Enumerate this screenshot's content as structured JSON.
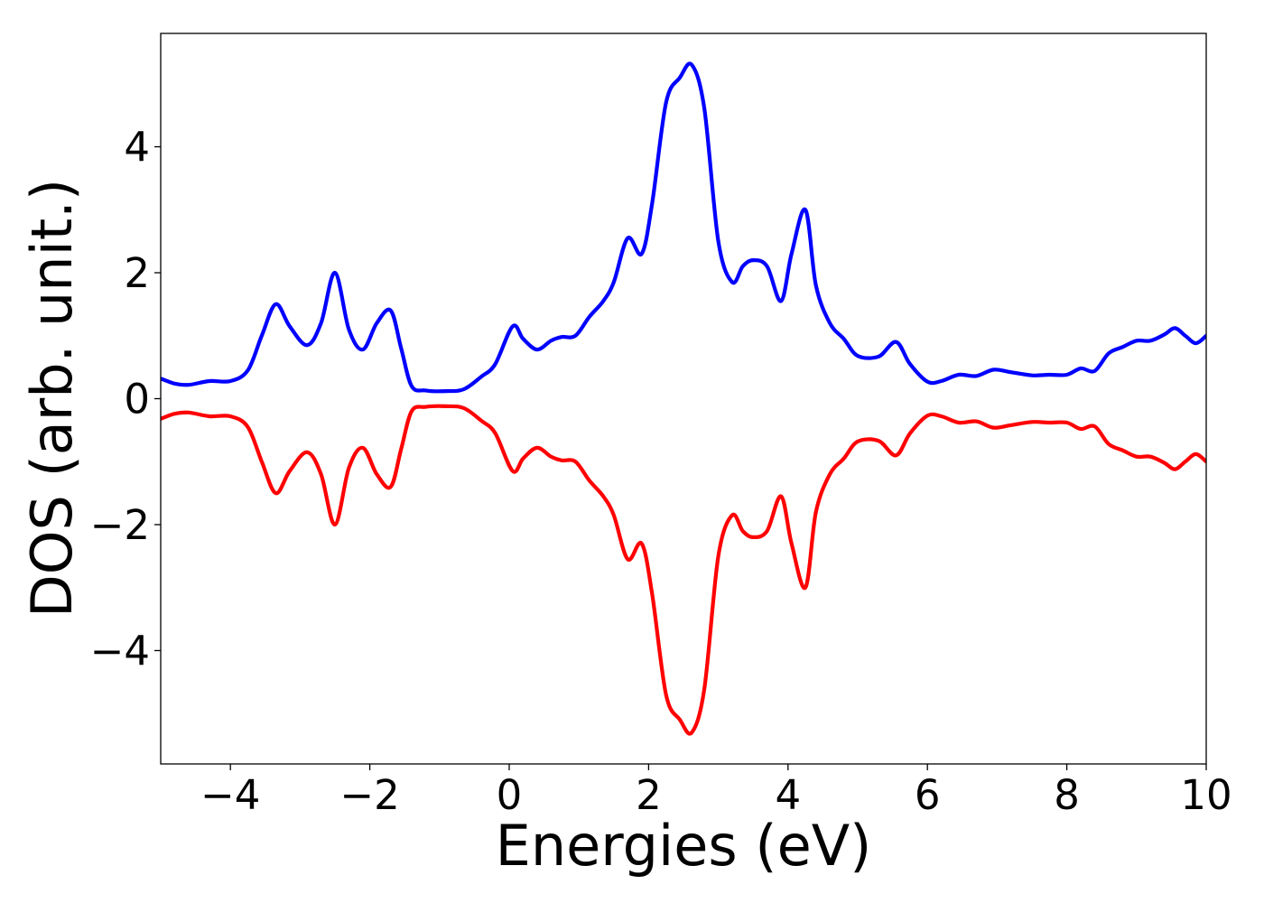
{
  "chart_data": {
    "type": "line",
    "title": "",
    "xlabel": "Energies (eV)",
    "ylabel": "DOS (arb. unit.)",
    "xlim": [
      -5,
      10
    ],
    "ylim": [
      -5.8,
      5.8
    ],
    "grid": false,
    "legend": "none",
    "x_ticks": [
      -4,
      -2,
      0,
      2,
      4,
      6,
      8,
      10
    ],
    "x_tick_labels": [
      "−4",
      "−2",
      "0",
      "2",
      "4",
      "6",
      "8",
      "10"
    ],
    "y_ticks": [
      -4,
      -2,
      0,
      2,
      4
    ],
    "y_tick_labels": [
      "−4",
      "−2",
      "0",
      "2",
      "4"
    ],
    "x": [
      -5.0,
      -4.8,
      -4.6,
      -4.3,
      -4.0,
      -3.75,
      -3.55,
      -3.35,
      -3.15,
      -2.9,
      -2.7,
      -2.5,
      -2.3,
      -2.1,
      -1.9,
      -1.7,
      -1.55,
      -1.4,
      -1.2,
      -0.9,
      -0.65,
      -0.4,
      -0.2,
      0.05,
      0.2,
      0.4,
      0.6,
      0.75,
      0.95,
      1.15,
      1.35,
      1.5,
      1.7,
      1.9,
      2.05,
      2.25,
      2.45,
      2.62,
      2.8,
      3.0,
      3.2,
      3.35,
      3.5,
      3.7,
      3.9,
      4.05,
      4.25,
      4.4,
      4.6,
      4.8,
      5.0,
      5.3,
      5.55,
      5.75,
      6.0,
      6.2,
      6.45,
      6.7,
      6.95,
      7.2,
      7.5,
      7.75,
      8.0,
      8.2,
      8.4,
      8.6,
      8.8,
      9.0,
      9.2,
      9.4,
      9.55,
      9.7,
      9.85,
      10.0
    ],
    "series": [
      {
        "color": "#0000ff",
        "values": [
          0.32,
          0.24,
          0.22,
          0.28,
          0.28,
          0.45,
          1.0,
          1.5,
          1.15,
          0.85,
          1.2,
          2.0,
          1.1,
          0.78,
          1.2,
          1.4,
          0.8,
          0.2,
          0.13,
          0.12,
          0.15,
          0.35,
          0.55,
          1.15,
          0.95,
          0.78,
          0.92,
          0.98,
          1.0,
          1.3,
          1.55,
          1.85,
          2.55,
          2.3,
          3.1,
          4.7,
          5.1,
          5.3,
          4.6,
          2.5,
          1.85,
          2.1,
          2.2,
          2.1,
          1.55,
          2.3,
          3.0,
          1.8,
          1.2,
          0.95,
          0.68,
          0.67,
          0.9,
          0.55,
          0.27,
          0.28,
          0.38,
          0.36,
          0.46,
          0.42,
          0.37,
          0.38,
          0.38,
          0.48,
          0.44,
          0.72,
          0.82,
          0.92,
          0.92,
          1.02,
          1.12,
          1.0,
          0.88,
          1.0
        ]
      },
      {
        "color": "#ff0000",
        "values": [
          -0.32,
          -0.24,
          -0.22,
          -0.28,
          -0.28,
          -0.45,
          -1.0,
          -1.5,
          -1.15,
          -0.85,
          -1.2,
          -2.0,
          -1.1,
          -0.78,
          -1.2,
          -1.4,
          -0.8,
          -0.2,
          -0.13,
          -0.12,
          -0.15,
          -0.35,
          -0.55,
          -1.15,
          -0.95,
          -0.78,
          -0.92,
          -0.98,
          -1.0,
          -1.3,
          -1.55,
          -1.85,
          -2.55,
          -2.3,
          -3.1,
          -4.7,
          -5.1,
          -5.3,
          -4.6,
          -2.5,
          -1.85,
          -2.1,
          -2.2,
          -2.1,
          -1.55,
          -2.3,
          -3.0,
          -1.8,
          -1.2,
          -0.95,
          -0.68,
          -0.67,
          -0.9,
          -0.55,
          -0.27,
          -0.28,
          -0.38,
          -0.36,
          -0.46,
          -0.42,
          -0.37,
          -0.38,
          -0.38,
          -0.48,
          -0.44,
          -0.72,
          -0.82,
          -0.92,
          -0.92,
          -1.02,
          -1.12,
          -1.0,
          -0.88,
          -1.0
        ]
      }
    ]
  }
}
